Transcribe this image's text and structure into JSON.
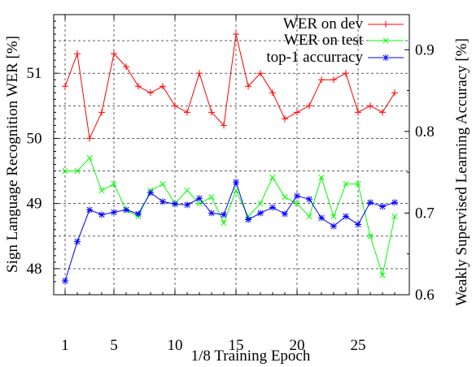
{
  "chart_data": {
    "type": "line",
    "xlabel": "1/8 Training Epoch",
    "ylabel_left": "Sign Language Recognition WER [%]",
    "ylabel_right": "Weakly Supervised Learning Accuracy [%]",
    "xlim": [
      0,
      29
    ],
    "ylim_left": [
      47.6,
      51.9
    ],
    "ylim_right": [
      0.6,
      0.943
    ],
    "x_ticks": [
      1,
      5,
      10,
      15,
      20,
      25
    ],
    "y_ticks_left": [
      48,
      49,
      50,
      51
    ],
    "y_ticks_right": [
      0.6,
      0.7,
      0.8,
      0.9
    ],
    "grid": true,
    "legend_position": "top-right",
    "series": [
      {
        "name": "WER on dev",
        "axis": "left",
        "color": "#ff0000",
        "marker": "plus",
        "x": [
          1,
          2,
          3,
          4,
          5,
          6,
          7,
          8,
          9,
          10,
          11,
          12,
          13,
          14,
          15,
          16,
          17,
          18,
          19,
          20,
          21,
          22,
          23,
          24,
          25,
          26,
          27,
          28
        ],
        "values": [
          50.8,
          51.3,
          50.0,
          50.4,
          51.3,
          51.1,
          50.8,
          50.7,
          50.8,
          50.5,
          50.4,
          51.0,
          50.4,
          50.2,
          51.6,
          50.8,
          51.0,
          50.7,
          50.3,
          50.4,
          50.5,
          50.9,
          50.9,
          51.0,
          50.4,
          50.5,
          50.4,
          50.7
        ]
      },
      {
        "name": "WER on test",
        "axis": "left",
        "color": "#00ff00",
        "marker": "cross",
        "x": [
          1,
          2,
          3,
          4,
          5,
          6,
          7,
          8,
          9,
          10,
          11,
          12,
          13,
          14,
          15,
          16,
          17,
          18,
          19,
          20,
          21,
          22,
          23,
          24,
          25,
          26,
          27,
          28
        ],
        "values": [
          49.5,
          49.5,
          49.7,
          49.2,
          49.3,
          48.9,
          48.8,
          49.2,
          49.3,
          49.0,
          49.2,
          49.0,
          49.1,
          48.7,
          49.2,
          48.8,
          49.0,
          49.4,
          49.1,
          49.0,
          48.8,
          49.4,
          48.8,
          49.3,
          49.3,
          48.5,
          47.9,
          48.8
        ]
      },
      {
        "name": "top-1 accurracy",
        "axis": "right",
        "color": "#0000ff",
        "marker": "asterisk",
        "x": [
          1,
          2,
          3,
          4,
          5,
          6,
          7,
          8,
          9,
          10,
          11,
          12,
          13,
          14,
          15,
          16,
          17,
          18,
          19,
          20,
          21,
          22,
          23,
          24,
          25,
          26,
          27,
          28
        ],
        "values": [
          0.617,
          0.665,
          0.704,
          0.698,
          0.701,
          0.704,
          0.699,
          0.725,
          0.714,
          0.711,
          0.71,
          0.718,
          0.7,
          0.698,
          0.738,
          0.692,
          0.7,
          0.707,
          0.699,
          0.721,
          0.717,
          0.694,
          0.684,
          0.696,
          0.686,
          0.713,
          0.708,
          0.713
        ]
      }
    ]
  }
}
